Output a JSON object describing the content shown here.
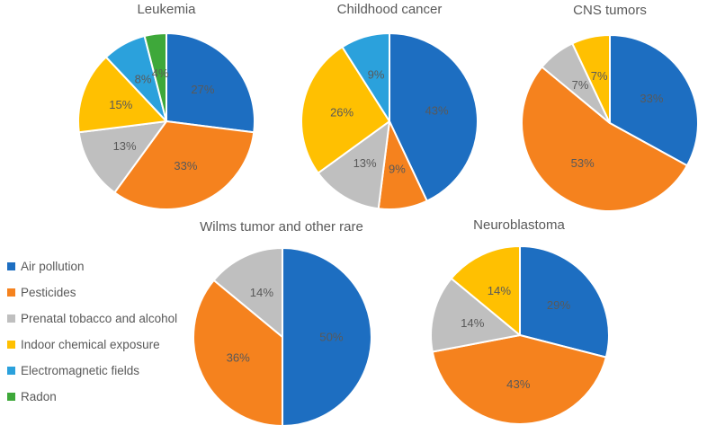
{
  "legend": {
    "items": [
      {
        "label": "Air pollution",
        "color": "#1D6EC1"
      },
      {
        "label": "Pesticides",
        "color": "#F5821E"
      },
      {
        "label": "Prenatal tobacco and alcohol",
        "color": "#BFBFBF"
      },
      {
        "label": "Indoor chemical exposure",
        "color": "#FFC001"
      },
      {
        "label": "Electromagnetic fields",
        "color": "#2BA1DC"
      },
      {
        "label": "Radon",
        "color": "#3EA83A"
      }
    ]
  },
  "chart_data": [
    {
      "type": "pie",
      "title": "Leukemia",
      "categories": [
        "Air pollution",
        "Pesticides",
        "Prenatal tobacco and alcohol",
        "Indoor chemical exposure",
        "Electromagnetic fields",
        "Radon"
      ],
      "values": [
        27,
        33,
        13,
        15,
        8,
        4
      ],
      "data_labels": [
        "27%",
        "33%",
        "13%",
        "15%",
        "8%",
        "4%"
      ],
      "start_angle_deg": 0,
      "direction": "clockwise",
      "label_color": "#595959",
      "legend_position": "none"
    },
    {
      "type": "pie",
      "title": "Childhood cancer",
      "categories": [
        "Air pollution",
        "Pesticides",
        "Prenatal tobacco and alcohol",
        "Indoor chemical exposure",
        "Electromagnetic fields"
      ],
      "values": [
        43,
        9,
        13,
        26,
        9
      ],
      "data_labels": [
        "43%",
        "9%",
        "13%",
        "26%",
        "9%"
      ],
      "start_angle_deg": 0,
      "direction": "clockwise",
      "label_color": "#595959",
      "legend_position": "none"
    },
    {
      "type": "pie",
      "title": "CNS tumors",
      "categories": [
        "Air pollution",
        "Pesticides",
        "Prenatal tobacco and alcohol",
        "Indoor chemical exposure"
      ],
      "values": [
        33,
        53,
        7,
        7
      ],
      "data_labels": [
        "33%",
        "53%",
        "7%",
        "7%"
      ],
      "start_angle_deg": 0,
      "direction": "clockwise",
      "label_color": "#595959",
      "legend_position": "none"
    },
    {
      "type": "pie",
      "title": "Wilms tumor and other rare",
      "categories": [
        "Air pollution",
        "Pesticides",
        "Prenatal tobacco and alcohol"
      ],
      "values": [
        50,
        36,
        14
      ],
      "data_labels": [
        "50%",
        "36%",
        "14%"
      ],
      "start_angle_deg": 0,
      "direction": "clockwise",
      "label_color": "#595959",
      "legend_position": "none"
    },
    {
      "type": "pie",
      "title": "Neuroblastoma",
      "categories": [
        "Air pollution",
        "Pesticides",
        "Prenatal tobacco and alcohol",
        "Indoor chemical exposure"
      ],
      "values": [
        29,
        43,
        14,
        14
      ],
      "data_labels": [
        "29%",
        "43%",
        "14%",
        "14%"
      ],
      "start_angle_deg": 0,
      "direction": "clockwise",
      "label_color": "#595959",
      "legend_position": "none"
    }
  ]
}
